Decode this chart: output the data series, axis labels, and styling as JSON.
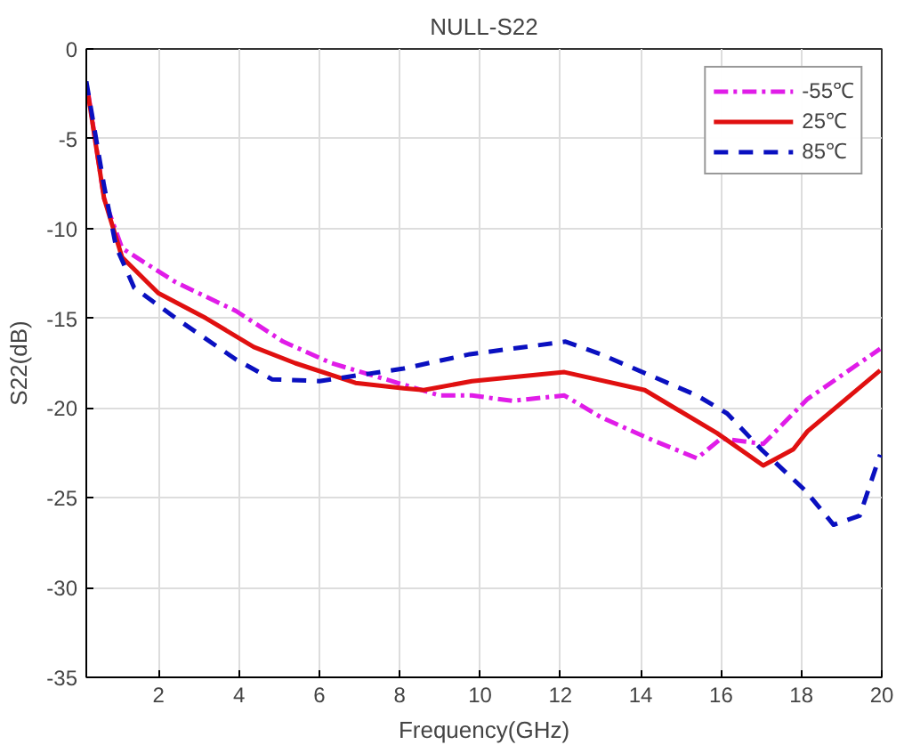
{
  "chart_data": {
    "type": "line",
    "title": "NULL-S22",
    "xlabel": "Frequency(GHz)",
    "ylabel": "S22(dB)",
    "xlim": [
      0.2,
      20
    ],
    "ylim": [
      -35,
      0
    ],
    "xticks": [
      2,
      4,
      6,
      8,
      10,
      12,
      14,
      16,
      18,
      20
    ],
    "yticks": [
      -35,
      -30,
      -25,
      -20,
      -15,
      -10,
      -5,
      0
    ],
    "grid": true,
    "legend": "top right",
    "series": [
      {
        "name": "-55℃",
        "color": "#e01ce8",
        "line_style": "dashdot",
        "x": [
          0.25,
          0.64,
          1.09,
          2.43,
          3.93,
          5.1,
          6.3,
          7.8,
          9.0,
          9.8,
          10.8,
          12.1,
          13.0,
          14.2,
          15.4,
          16.0,
          17.05,
          18.15,
          19.96
        ],
        "values": [
          -2.5,
          -8.3,
          -11.1,
          -13.0,
          -14.6,
          -16.3,
          -17.5,
          -18.5,
          -19.3,
          -19.3,
          -19.6,
          -19.3,
          -20.5,
          -21.7,
          -22.8,
          -21.7,
          -22.0,
          -19.5,
          -16.7
        ]
      },
      {
        "name": "25℃",
        "color": "#e01010",
        "line_style": "solid",
        "x": [
          0.25,
          0.64,
          1.09,
          1.99,
          3.18,
          4.37,
          5.4,
          6.9,
          8.1,
          8.6,
          9.8,
          12.1,
          14.1,
          15.9,
          17.05,
          17.8,
          18.15,
          19.96
        ],
        "values": [
          -2.6,
          -8.3,
          -11.6,
          -13.6,
          -15.0,
          -16.6,
          -17.5,
          -18.6,
          -18.9,
          -19.0,
          -18.5,
          -18.0,
          -19.0,
          -21.4,
          -23.2,
          -22.3,
          -21.3,
          -17.9
        ]
      },
      {
        "name": "85℃",
        "color": "#0a10c0",
        "line_style": "dashed",
        "x": [
          0.2,
          0.64,
          0.94,
          1.39,
          2.43,
          3.93,
          4.82,
          6.0,
          7.2,
          8.1,
          9.75,
          12.13,
          13.0,
          15.4,
          16.15,
          17.0,
          18.1,
          18.8,
          19.45,
          19.96
        ],
        "values": [
          -1.8,
          -7.6,
          -11.0,
          -13.3,
          -15.0,
          -17.3,
          -18.4,
          -18.5,
          -18.1,
          -17.8,
          -17.0,
          -16.3,
          -17.0,
          -19.3,
          -20.3,
          -22.3,
          -24.6,
          -26.5,
          -26.0,
          -22.6
        ]
      }
    ]
  }
}
